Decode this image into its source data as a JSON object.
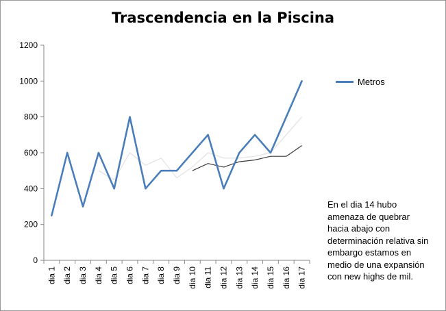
{
  "chart_data": {
    "type": "line",
    "title": "Trascendencia en la Piscina",
    "xlabel": "",
    "ylabel": "",
    "categories": [
      "dia 1",
      "dia 2",
      "dia 3",
      "dia 4",
      "dia 5",
      "dia 6",
      "dia 7",
      "dia 8",
      "dia 9",
      "dia 10",
      "dia 11",
      "dia 12",
      "dia 13",
      "dia 14",
      "dia 15",
      "dia 16",
      "dia 17"
    ],
    "ylim": [
      0,
      1200
    ],
    "yticks": [
      "0",
      "200",
      "400",
      "600",
      "800",
      "1000",
      "1200"
    ],
    "series": [
      {
        "name": "Metros",
        "color": "#4a7ebb",
        "values": [
          250,
          600,
          300,
          600,
          400,
          800,
          400,
          500,
          500,
          600,
          700,
          400,
          600,
          700,
          600,
          800,
          1000
        ]
      }
    ],
    "extra_lines": [
      {
        "color": "#e2e2e2",
        "values": [
          null,
          null,
          null,
          500,
          450,
          600,
          530,
          570,
          460,
          520,
          600,
          570,
          570,
          580,
          600,
          700,
          800
        ]
      },
      {
        "color": "#3a3a3a",
        "values": [
          null,
          null,
          null,
          null,
          null,
          null,
          null,
          null,
          null,
          500,
          540,
          520,
          550,
          560,
          580,
          580,
          640
        ]
      }
    ],
    "legend": {
      "position": "right",
      "label": "Metros"
    },
    "annotation": "En el dia 14 hubo amenaza de quebrar hacia abajo con determinación relativa sin embargo estamos en medio de una expansión con new highs de mil.",
    "grid": false
  }
}
